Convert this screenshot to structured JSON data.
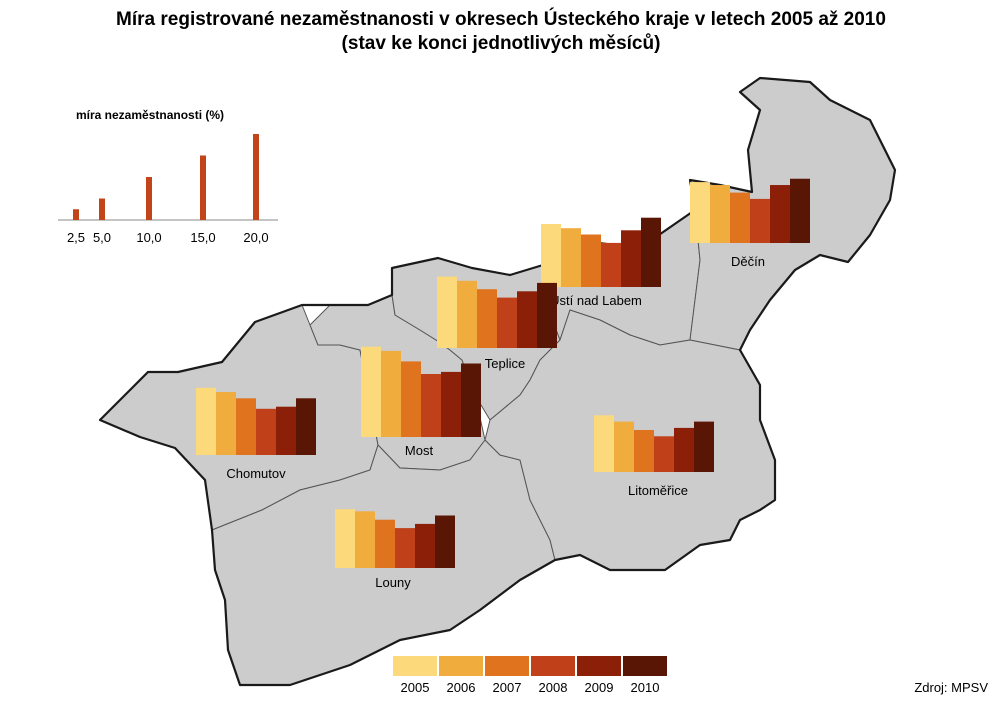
{
  "title_line1": "Míra registrované nezaměstnanosti v okresech Ústeckého kraje v letech 2005 až 2010",
  "title_line2": "(stav ke konci jednotlivých měsíců)",
  "scale": {
    "title": "míra nezaměstnanosti (%)",
    "values": [
      2.5,
      5.0,
      10.0,
      15.0,
      20.0
    ],
    "labels": [
      "2,5",
      "5,0",
      "10,0",
      "15,0",
      "20,0"
    ],
    "color": "#c1441b"
  },
  "years": [
    "2005",
    "2006",
    "2007",
    "2008",
    "2009",
    "2010"
  ],
  "year_colors": [
    "#fcd97a",
    "#f0ac3c",
    "#e0741e",
    "#c0401a",
    "#8c1f08",
    "#5a1605"
  ],
  "map_fill": "#cccccc",
  "source": "Zdroj: MPSV",
  "chart_data": {
    "type": "bar",
    "title": "Míra registrované nezaměstnanosti v okresech Ústeckého kraje v letech 2005 až 2010",
    "ylabel": "míra nezaměstnanosti (%)",
    "categories": [
      "2005",
      "2006",
      "2007",
      "2008",
      "2009",
      "2010"
    ],
    "series": [
      {
        "name": "Děčín",
        "values": [
          14.5,
          13.8,
          12.0,
          10.5,
          13.8,
          15.3
        ]
      },
      {
        "name": "Ústí nad Labem",
        "values": [
          15.0,
          14.0,
          12.5,
          10.5,
          13.5,
          16.5
        ]
      },
      {
        "name": "Teplice",
        "values": [
          17.0,
          16.0,
          14.0,
          12.0,
          13.5,
          15.5
        ]
      },
      {
        "name": "Most",
        "values": [
          21.5,
          20.5,
          18.0,
          15.0,
          15.5,
          17.5
        ]
      },
      {
        "name": "Chomutov",
        "values": [
          16.0,
          15.0,
          13.5,
          11.0,
          11.5,
          13.5
        ]
      },
      {
        "name": "Louny",
        "values": [
          14.0,
          13.5,
          11.5,
          9.5,
          10.5,
          12.5
        ]
      },
      {
        "name": "Litoměřice",
        "values": [
          13.5,
          12.0,
          10.0,
          8.5,
          10.5,
          12.0
        ]
      }
    ]
  }
}
